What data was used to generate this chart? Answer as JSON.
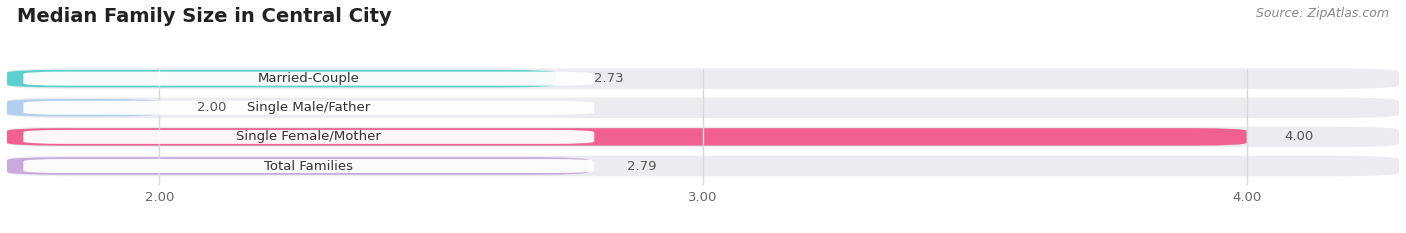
{
  "title": "Median Family Size in Central City",
  "source": "Source: ZipAtlas.com",
  "categories": [
    "Married-Couple",
    "Single Male/Father",
    "Single Female/Mother",
    "Total Families"
  ],
  "values": [
    2.73,
    2.0,
    4.0,
    2.79
  ],
  "bar_colors": [
    "#5ecfcf",
    "#b3cff0",
    "#f06090",
    "#c8aade"
  ],
  "xlim_left": 1.72,
  "xlim_right": 4.28,
  "x_min": 2.0,
  "xticks": [
    2.0,
    3.0,
    4.0
  ],
  "xtick_labels": [
    "2.00",
    "3.00",
    "4.00"
  ],
  "bg_color": "#ffffff",
  "bar_bg_color": "#ebebf0",
  "grid_color": "#d8d8e0",
  "title_fontsize": 14,
  "label_fontsize": 9.5,
  "value_fontsize": 9.5,
  "source_fontsize": 9
}
